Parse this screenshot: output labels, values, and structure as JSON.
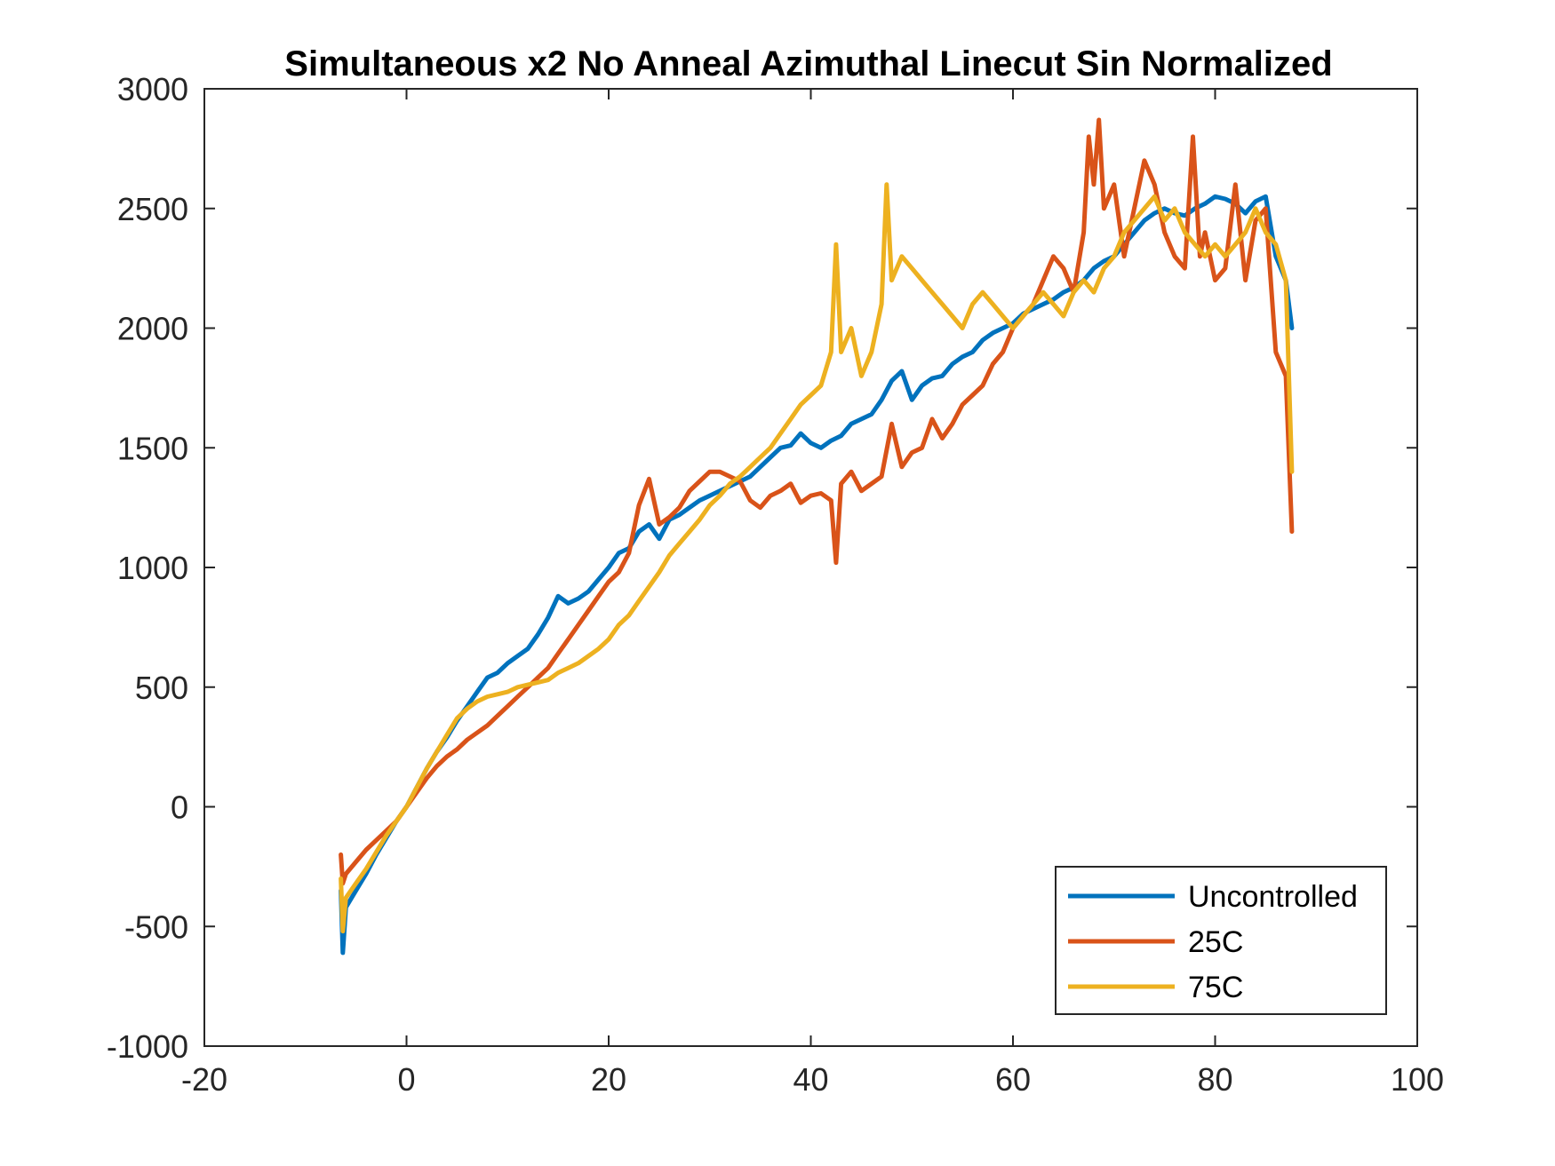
{
  "chart_data": {
    "type": "line",
    "title": "Simultaneous x2 No Anneal Azimuthal Linecut Sin Normalized",
    "xlabel": "",
    "ylabel": "",
    "xlim": [
      -20,
      100
    ],
    "ylim": [
      -1000,
      3000
    ],
    "xticks": [
      -20,
      0,
      20,
      40,
      60,
      80,
      100
    ],
    "yticks": [
      -1000,
      -500,
      0,
      500,
      1000,
      1500,
      2000,
      2500,
      3000
    ],
    "xtick_labels": [
      "-20",
      "0",
      "20",
      "40",
      "60",
      "80",
      "100"
    ],
    "ytick_labels": [
      "-1000",
      "-500",
      "0",
      "500",
      "1000",
      "1500",
      "2000",
      "2500",
      "3000"
    ],
    "grid": false,
    "legend_position": "bottom-right",
    "series": [
      {
        "name": "Uncontrolled",
        "color": "#0072BD",
        "x": [
          -6.5,
          -6.3,
          -6,
          -5,
          -4,
          -3,
          -2,
          -1,
          0,
          1,
          2,
          3,
          4,
          5,
          6,
          7,
          8,
          9,
          10,
          11,
          12,
          13,
          14,
          15,
          16,
          17,
          18,
          19,
          20,
          21,
          22,
          23,
          24,
          25,
          26,
          27,
          28,
          29,
          30,
          31,
          32,
          33,
          34,
          35,
          36,
          37,
          38,
          39,
          40,
          41,
          42,
          43,
          44,
          45,
          46,
          47,
          48,
          49,
          50,
          51,
          52,
          53,
          54,
          55,
          56,
          57,
          58,
          59,
          60,
          61,
          62,
          63,
          64,
          65,
          66,
          67,
          68,
          69,
          70,
          71,
          72,
          73,
          74,
          75,
          76,
          77,
          78,
          79,
          80,
          81,
          82,
          83,
          84,
          85,
          86,
          87,
          87.6
        ],
        "y": [
          -350,
          -610,
          -420,
          -350,
          -280,
          -200,
          -130,
          -60,
          0,
          80,
          160,
          230,
          290,
          360,
          420,
          480,
          540,
          560,
          600,
          630,
          660,
          720,
          790,
          880,
          850,
          870,
          900,
          950,
          1000,
          1060,
          1080,
          1150,
          1180,
          1120,
          1200,
          1220,
          1250,
          1280,
          1300,
          1320,
          1340,
          1360,
          1380,
          1420,
          1460,
          1500,
          1510,
          1560,
          1520,
          1500,
          1530,
          1550,
          1600,
          1620,
          1640,
          1700,
          1780,
          1820,
          1700,
          1760,
          1790,
          1800,
          1850,
          1880,
          1900,
          1950,
          1980,
          2000,
          2020,
          2060,
          2080,
          2100,
          2120,
          2150,
          2170,
          2200,
          2250,
          2280,
          2300,
          2350,
          2400,
          2450,
          2480,
          2500,
          2480,
          2470,
          2500,
          2520,
          2550,
          2540,
          2520,
          2480,
          2530,
          2550,
          2300,
          2200,
          2000
        ]
      },
      {
        "name": "25C",
        "color": "#D95319",
        "x": [
          -6.5,
          -6.3,
          -6,
          -5,
          -4,
          -3,
          -2,
          -1,
          0,
          1,
          2,
          3,
          4,
          5,
          6,
          7,
          8,
          9,
          10,
          11,
          12,
          13,
          14,
          15,
          16,
          17,
          18,
          19,
          20,
          21,
          22,
          23,
          24,
          25,
          26,
          27,
          28,
          29,
          30,
          31,
          32,
          33,
          34,
          35,
          36,
          37,
          38,
          39,
          40,
          41,
          42,
          42.5,
          43,
          44,
          45,
          46,
          47,
          48,
          49,
          50,
          51,
          52,
          53,
          54,
          55,
          56,
          57,
          58,
          59,
          60,
          61,
          62,
          63,
          64,
          65,
          66,
          67,
          67.5,
          68,
          68.5,
          69,
          70,
          71,
          72,
          73,
          74,
          75,
          76,
          77,
          77.8,
          78.5,
          79,
          80,
          81,
          82,
          83,
          84,
          85,
          86,
          87,
          87.6
        ],
        "y": [
          -200,
          -320,
          -280,
          -230,
          -180,
          -140,
          -100,
          -60,
          0,
          60,
          120,
          170,
          210,
          240,
          280,
          310,
          340,
          380,
          420,
          460,
          500,
          540,
          580,
          640,
          700,
          760,
          820,
          880,
          940,
          980,
          1060,
          1260,
          1370,
          1180,
          1210,
          1250,
          1320,
          1360,
          1400,
          1400,
          1380,
          1360,
          1280,
          1250,
          1300,
          1320,
          1350,
          1270,
          1300,
          1310,
          1280,
          1020,
          1350,
          1400,
          1320,
          1350,
          1380,
          1600,
          1420,
          1480,
          1500,
          1620,
          1540,
          1600,
          1680,
          1720,
          1760,
          1850,
          1900,
          2000,
          2050,
          2100,
          2200,
          2300,
          2250,
          2150,
          2400,
          2800,
          2600,
          2870,
          2500,
          2600,
          2300,
          2500,
          2700,
          2600,
          2400,
          2300,
          2250,
          2800,
          2300,
          2400,
          2200,
          2250,
          2600,
          2200,
          2450,
          2500,
          1900,
          1800,
          1150
        ]
      },
      {
        "name": "75C",
        "color": "#EDB120",
        "x": [
          -6.5,
          -6.3,
          -6,
          -5,
          -4,
          -3,
          -2,
          -1,
          0,
          1,
          2,
          3,
          4,
          5,
          6,
          7,
          8,
          9,
          10,
          11,
          12,
          13,
          14,
          15,
          16,
          17,
          18,
          19,
          20,
          21,
          22,
          23,
          24,
          25,
          26,
          27,
          28,
          29,
          30,
          31,
          32,
          33,
          34,
          35,
          36,
          37,
          38,
          39,
          40,
          41,
          42,
          42.5,
          43,
          44,
          45,
          46,
          47,
          47.5,
          48,
          49,
          50,
          51,
          52,
          53,
          54,
          55,
          56,
          57,
          58,
          59,
          60,
          61,
          62,
          63,
          64,
          65,
          66,
          67,
          68,
          69,
          70,
          71,
          72,
          73,
          74,
          75,
          76,
          77,
          78,
          79,
          80,
          81,
          82,
          83,
          84,
          85,
          86,
          87,
          87.6
        ],
        "y": [
          -300,
          -520,
          -380,
          -320,
          -260,
          -190,
          -120,
          -60,
          0,
          80,
          160,
          230,
          300,
          370,
          410,
          440,
          460,
          470,
          480,
          500,
          510,
          520,
          530,
          560,
          580,
          600,
          630,
          660,
          700,
          760,
          800,
          860,
          920,
          980,
          1050,
          1100,
          1150,
          1200,
          1260,
          1300,
          1350,
          1380,
          1420,
          1460,
          1500,
          1560,
          1620,
          1680,
          1720,
          1760,
          1900,
          2350,
          1900,
          2000,
          1800,
          1900,
          2100,
          2600,
          2200,
          2300,
          2250,
          2200,
          2150,
          2100,
          2050,
          2000,
          2100,
          2150,
          2100,
          2050,
          2000,
          2050,
          2100,
          2150,
          2100,
          2050,
          2150,
          2200,
          2150,
          2250,
          2300,
          2400,
          2450,
          2500,
          2550,
          2450,
          2500,
          2400,
          2350,
          2300,
          2350,
          2300,
          2350,
          2400,
          2500,
          2400,
          2350,
          2200,
          1400
        ]
      }
    ]
  }
}
